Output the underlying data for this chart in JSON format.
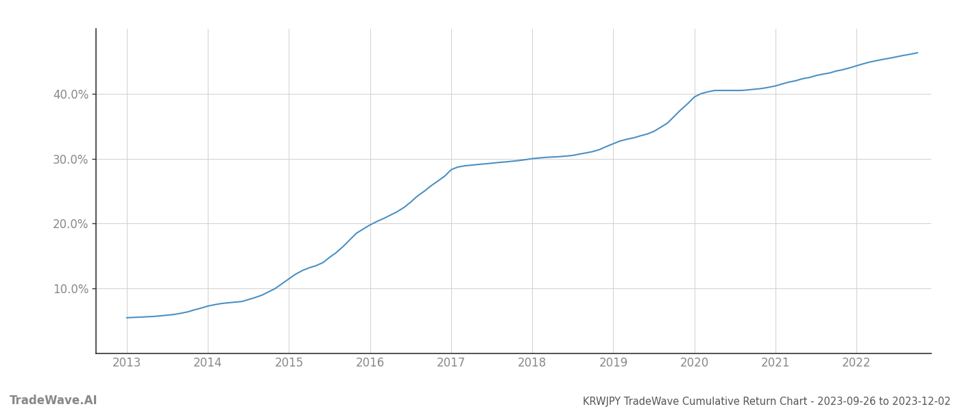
{
  "title": "KRWJPY TradeWave Cumulative Return Chart - 2023-09-26 to 2023-12-02",
  "watermark": "TradeWave.AI",
  "line_color": "#4a90c4",
  "background_color": "#ffffff",
  "grid_color": "#d0d0d0",
  "x_years": [
    2013,
    2014,
    2015,
    2016,
    2017,
    2018,
    2019,
    2020,
    2021,
    2022
  ],
  "x_values": [
    2013.0,
    2013.08,
    2013.17,
    2013.25,
    2013.33,
    2013.42,
    2013.5,
    2013.58,
    2013.67,
    2013.75,
    2013.83,
    2013.92,
    2014.0,
    2014.08,
    2014.17,
    2014.25,
    2014.33,
    2014.42,
    2014.5,
    2014.58,
    2014.67,
    2014.75,
    2014.83,
    2014.92,
    2015.0,
    2015.08,
    2015.17,
    2015.25,
    2015.33,
    2015.42,
    2015.5,
    2015.58,
    2015.67,
    2015.75,
    2015.83,
    2015.92,
    2016.0,
    2016.08,
    2016.17,
    2016.25,
    2016.33,
    2016.42,
    2016.5,
    2016.58,
    2016.67,
    2016.75,
    2016.83,
    2016.92,
    2017.0,
    2017.08,
    2017.17,
    2017.25,
    2017.33,
    2017.42,
    2017.5,
    2017.58,
    2017.67,
    2017.75,
    2017.83,
    2017.92,
    2018.0,
    2018.08,
    2018.17,
    2018.25,
    2018.33,
    2018.42,
    2018.5,
    2018.58,
    2018.67,
    2018.75,
    2018.83,
    2018.92,
    2019.0,
    2019.08,
    2019.17,
    2019.25,
    2019.33,
    2019.42,
    2019.5,
    2019.58,
    2019.67,
    2019.75,
    2019.83,
    2019.92,
    2020.0,
    2020.08,
    2020.17,
    2020.25,
    2020.33,
    2020.42,
    2020.5,
    2020.58,
    2020.67,
    2020.75,
    2020.83,
    2020.92,
    2021.0,
    2021.08,
    2021.17,
    2021.25,
    2021.33,
    2021.42,
    2021.5,
    2021.58,
    2021.67,
    2021.75,
    2021.83,
    2021.92,
    2022.0,
    2022.08,
    2022.17,
    2022.25,
    2022.33,
    2022.42,
    2022.5,
    2022.58,
    2022.67,
    2022.75
  ],
  "y_values": [
    5.5,
    5.55,
    5.6,
    5.65,
    5.7,
    5.8,
    5.9,
    6.0,
    6.2,
    6.4,
    6.7,
    7.0,
    7.3,
    7.5,
    7.7,
    7.8,
    7.9,
    8.0,
    8.3,
    8.6,
    9.0,
    9.5,
    10.0,
    10.8,
    11.5,
    12.2,
    12.8,
    13.2,
    13.5,
    14.0,
    14.8,
    15.5,
    16.5,
    17.5,
    18.5,
    19.2,
    19.8,
    20.3,
    20.8,
    21.3,
    21.8,
    22.5,
    23.3,
    24.2,
    25.0,
    25.8,
    26.5,
    27.3,
    28.3,
    28.7,
    28.9,
    29.0,
    29.1,
    29.2,
    29.3,
    29.4,
    29.5,
    29.6,
    29.7,
    29.85,
    30.0,
    30.1,
    30.2,
    30.25,
    30.3,
    30.4,
    30.5,
    30.7,
    30.9,
    31.1,
    31.4,
    31.9,
    32.3,
    32.7,
    33.0,
    33.2,
    33.5,
    33.8,
    34.2,
    34.8,
    35.5,
    36.5,
    37.5,
    38.5,
    39.5,
    40.0,
    40.3,
    40.5,
    40.5,
    40.5,
    40.5,
    40.5,
    40.6,
    40.7,
    40.8,
    41.0,
    41.2,
    41.5,
    41.8,
    42.0,
    42.3,
    42.5,
    42.8,
    43.0,
    43.2,
    43.5,
    43.7,
    44.0,
    44.3,
    44.6,
    44.9,
    45.1,
    45.3,
    45.5,
    45.7,
    45.9,
    46.1,
    46.3
  ],
  "yticks": [
    10.0,
    20.0,
    30.0,
    40.0
  ],
  "ylim": [
    0,
    50
  ],
  "xlim": [
    2012.62,
    2022.92
  ],
  "title_fontsize": 10.5,
  "tick_fontsize": 12,
  "watermark_fontsize": 12,
  "spine_color": "#333333",
  "axis_color": "#888888",
  "tick_color": "#888888",
  "title_color": "#555555"
}
